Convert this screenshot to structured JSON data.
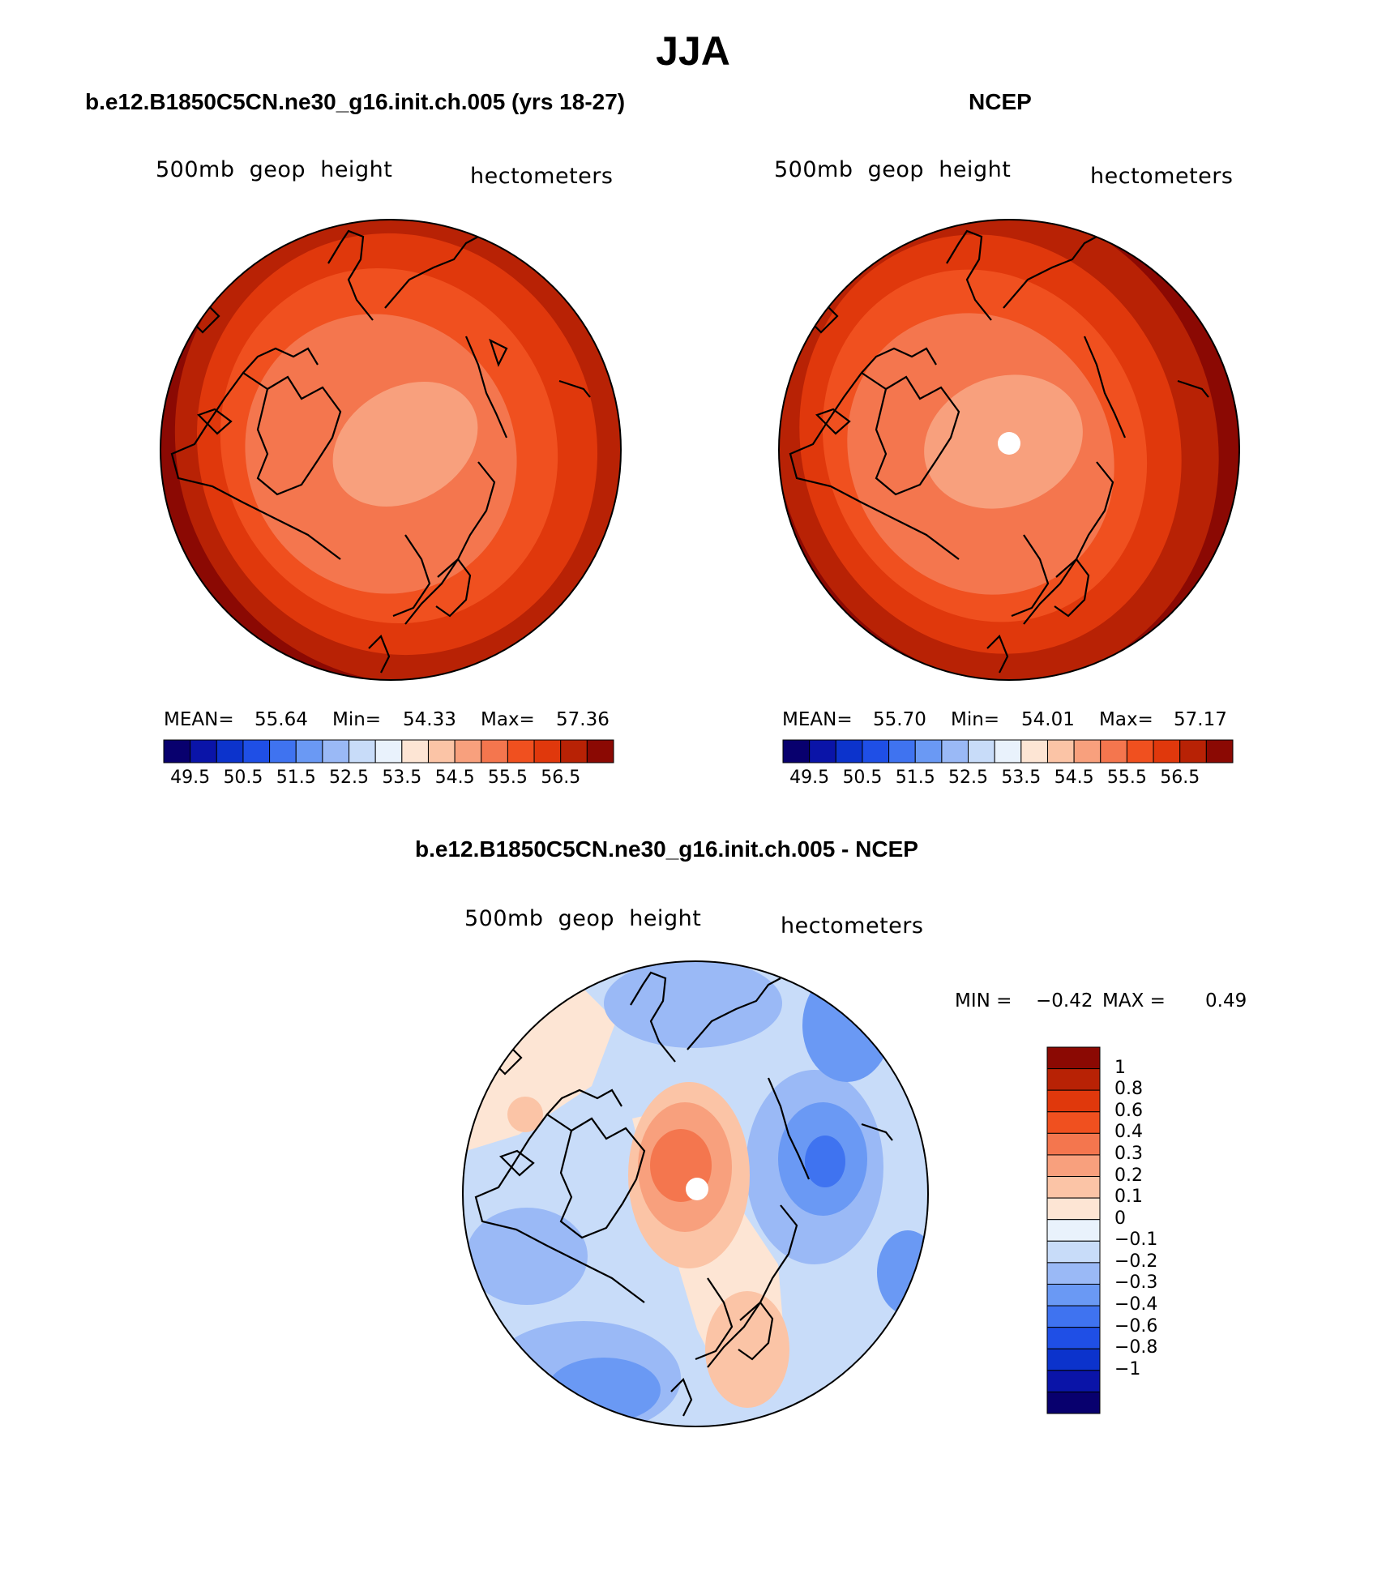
{
  "title": "JJA",
  "panels": [
    {
      "id": "model",
      "heading": "b.e12.B1850C5CN.ne30_g16.init.ch.005 (yrs 18-27)",
      "variable_label": "500mb  geop  height",
      "units_label": "hectometers",
      "stats": {
        "mean_label": "MEAN=",
        "mean": "55.64",
        "min_label": "Min=",
        "min": "54.33",
        "max_label": "Max=",
        "max": "57.36"
      }
    },
    {
      "id": "obs",
      "heading": "NCEP",
      "variable_label": "500mb  geop  height",
      "units_label": "hectometers",
      "stats": {
        "mean_label": "MEAN=",
        "mean": "55.70",
        "min_label": "Min=",
        "min": "54.01",
        "max_label": "Max=",
        "max": "57.17"
      }
    },
    {
      "id": "diff",
      "heading": "b.e12.B1850C5CN.ne30_g16.init.ch.005 - NCEP",
      "variable_label": "500mb  geop  height",
      "units_label": "hectometers",
      "stats": {
        "min_label": "MIN =",
        "min": "−0.42",
        "max_label": "MAX =",
        "max": "0.49"
      }
    }
  ],
  "colorbar_abs": {
    "colors": [
      "#08006e",
      "#0a14a8",
      "#0c33cc",
      "#1f4fe6",
      "#3f73f0",
      "#6a99f4",
      "#9ab9f6",
      "#c8dcf9",
      "#e9f2fc",
      "#fde5d4",
      "#fbc4a6",
      "#f8a07d",
      "#f4764e",
      "#f0501f",
      "#e0380c",
      "#b82205",
      "#8b0903"
    ],
    "tick_labels": [
      "49.5",
      "50.5",
      "51.5",
      "52.5",
      "53.5",
      "54.5",
      "55.5",
      "56.5"
    ]
  },
  "colorbar_diff": {
    "colors": [
      "#08006e",
      "#0a14a8",
      "#0c33cc",
      "#1f4fe6",
      "#3f73f0",
      "#6a99f4",
      "#9ab9f6",
      "#c8dcf9",
      "#e9f2fc",
      "#fde5d4",
      "#fbc4a6",
      "#f8a07d",
      "#f4764e",
      "#f0501f",
      "#e0380c",
      "#b82205",
      "#8b0903"
    ],
    "tick_labels": [
      "1",
      "0.8",
      "0.6",
      "0.4",
      "0.3",
      "0.2",
      "0.1",
      "0",
      "−0.1",
      "−0.2",
      "−0.3",
      "−0.4",
      "−0.6",
      "−0.8",
      "−1"
    ]
  }
}
